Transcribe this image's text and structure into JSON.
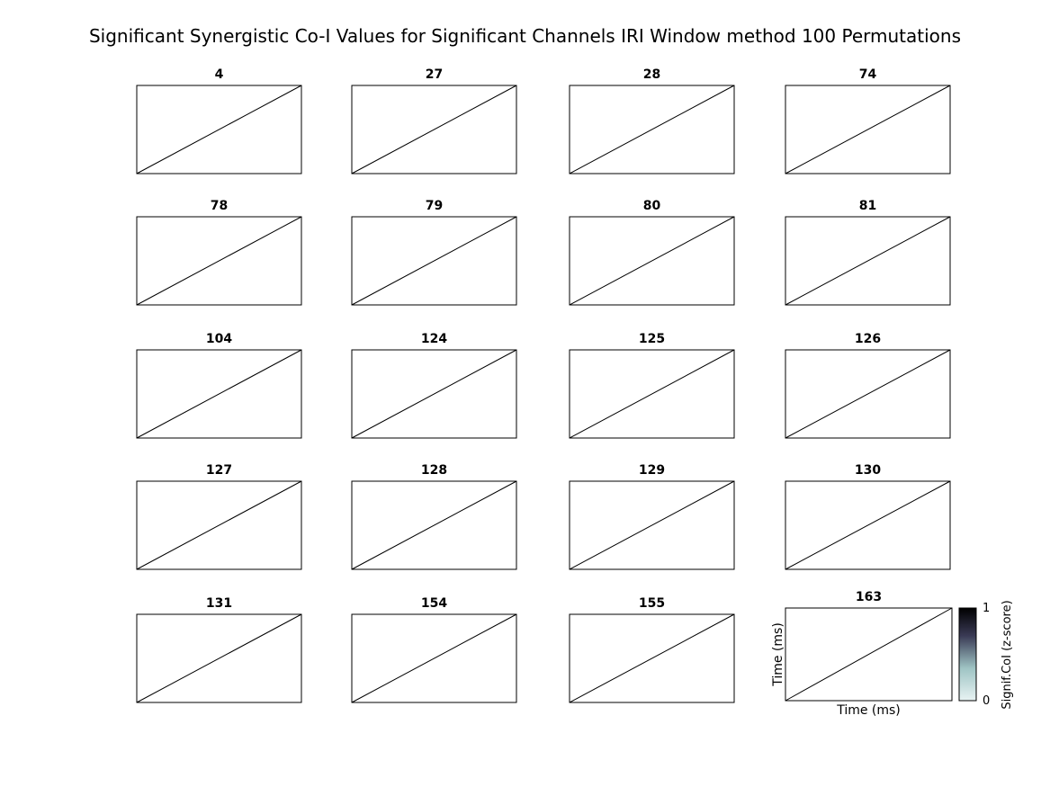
{
  "figure": {
    "title": "Significant Synergistic Co-I Values for Significant Channels IRI Window method 100 Permutations"
  },
  "chart_data": {
    "type": "heatmap",
    "panels": [
      {
        "title": "4"
      },
      {
        "title": "27"
      },
      {
        "title": "28"
      },
      {
        "title": "74"
      },
      {
        "title": "78"
      },
      {
        "title": "79"
      },
      {
        "title": "80"
      },
      {
        "title": "81"
      },
      {
        "title": "104"
      },
      {
        "title": "124"
      },
      {
        "title": "125"
      },
      {
        "title": "126"
      },
      {
        "title": "127"
      },
      {
        "title": "128"
      },
      {
        "title": "129"
      },
      {
        "title": "130"
      },
      {
        "title": "131"
      },
      {
        "title": "154"
      },
      {
        "title": "155"
      },
      {
        "title": "163",
        "xlabel": "Time (ms)",
        "ylabel": "Time (ms)"
      }
    ],
    "diagonal_line": true,
    "colorbar": {
      "label": "Signif.CoI (z-score)",
      "range": [
        0,
        1
      ],
      "ticks": [
        "0",
        "1"
      ],
      "colors": [
        "#e8f3f3",
        "#7fa7a7",
        "#3a3a55",
        "#000000"
      ]
    }
  }
}
